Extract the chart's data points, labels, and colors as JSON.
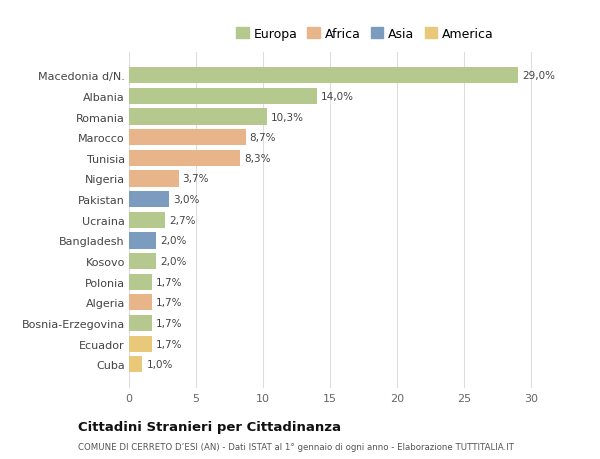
{
  "countries": [
    "Macedonia d/N.",
    "Albania",
    "Romania",
    "Marocco",
    "Tunisia",
    "Nigeria",
    "Pakistan",
    "Ucraina",
    "Bangladesh",
    "Kosovo",
    "Polonia",
    "Algeria",
    "Bosnia-Erzegovina",
    "Ecuador",
    "Cuba"
  ],
  "values": [
    29.0,
    14.0,
    10.3,
    8.7,
    8.3,
    3.7,
    3.0,
    2.7,
    2.0,
    2.0,
    1.7,
    1.7,
    1.7,
    1.7,
    1.0
  ],
  "labels": [
    "29,0%",
    "14,0%",
    "10,3%",
    "8,7%",
    "8,3%",
    "3,7%",
    "3,0%",
    "2,7%",
    "2,0%",
    "2,0%",
    "1,7%",
    "1,7%",
    "1,7%",
    "1,7%",
    "1,0%"
  ],
  "colors": [
    "#b5c98e",
    "#b5c98e",
    "#b5c98e",
    "#e8b48a",
    "#e8b48a",
    "#e8b48a",
    "#7b9bbf",
    "#b5c98e",
    "#7b9bbf",
    "#b5c98e",
    "#b5c98e",
    "#e8b48a",
    "#b5c98e",
    "#e8c97a",
    "#e8c97a"
  ],
  "legend_labels": [
    "Europa",
    "Africa",
    "Asia",
    "America"
  ],
  "legend_colors": [
    "#b5c98e",
    "#e8b48a",
    "#7b9bbf",
    "#e8c97a"
  ],
  "title": "Cittadini Stranieri per Cittadinanza",
  "subtitle": "COMUNE DI CERRETO D’ESI (AN) - Dati ISTAT al 1° gennaio di ogni anno - Elaborazione TUTTITALIA.IT",
  "xlim": [
    0,
    32
  ],
  "xticks": [
    0,
    5,
    10,
    15,
    20,
    25,
    30
  ],
  "bg_color": "#ffffff",
  "grid_color": "#dddddd",
  "bar_height": 0.78
}
